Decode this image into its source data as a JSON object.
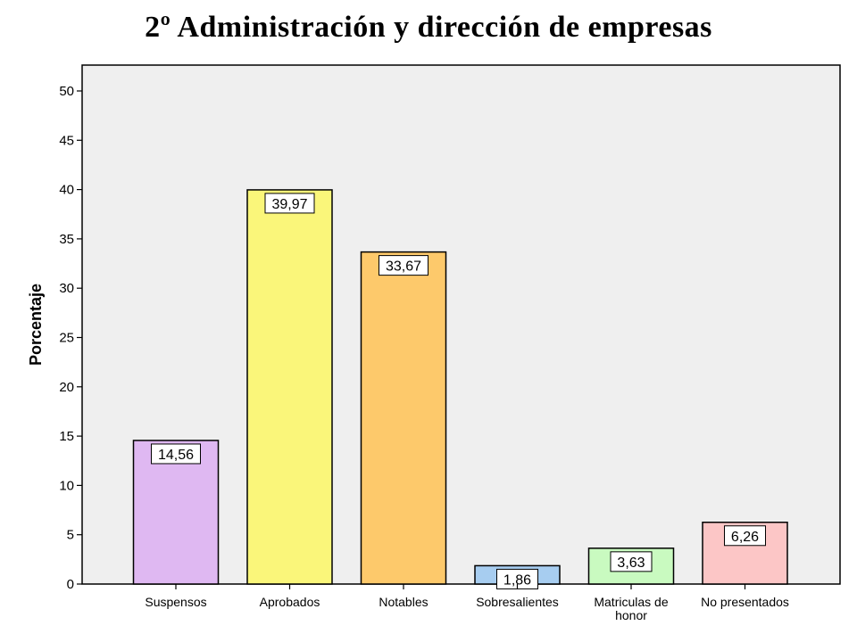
{
  "chart_data": {
    "type": "bar",
    "title": "2º Administración  y dirección  de empresas",
    "xlabel": "",
    "ylabel": "Porcentaje",
    "ylim": [
      0,
      50
    ],
    "yticks": [
      0,
      5,
      10,
      15,
      20,
      25,
      30,
      35,
      40,
      45,
      50
    ],
    "categories": [
      [
        "Suspensos"
      ],
      [
        "Aprobados"
      ],
      [
        "Notables"
      ],
      [
        "Sobresalientes"
      ],
      [
        "Matriculas de",
        "honor"
      ],
      [
        "No presentados"
      ]
    ],
    "values": [
      14.56,
      39.97,
      33.67,
      1.86,
      3.63,
      6.26
    ],
    "data_labels": [
      "14,56",
      "39,97",
      "33,67",
      "1,86",
      "3,63",
      "6,26"
    ],
    "bar_colors": [
      "#dfb8f2",
      "#faf67a",
      "#fdc96b",
      "#a7cdf0",
      "#c9fac0",
      "#fcc6c6"
    ],
    "plot_background": "#efefef",
    "grid": false,
    "legend": "none"
  }
}
